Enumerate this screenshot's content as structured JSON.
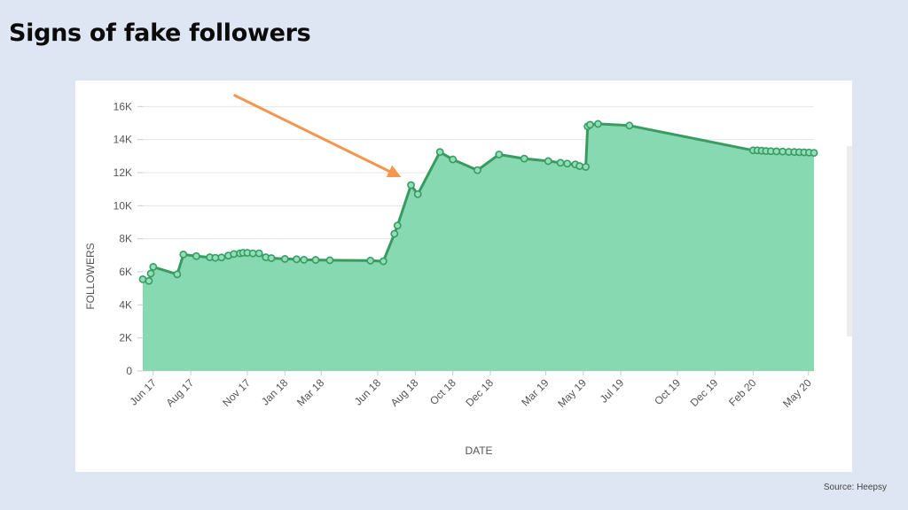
{
  "slide": {
    "title": "Signs of fake followers",
    "source": "Source: Heepsy"
  },
  "colors": {
    "background": "#dde6f2",
    "area_fill": "#86d9b1",
    "line": "#3a9a62",
    "arrow": "#f6964e"
  },
  "chart_data": {
    "type": "area",
    "title": "",
    "xlabel": "DATE",
    "ylabel": "FOLLOWERS",
    "ylim": [
      0,
      16500
    ],
    "yticks": [
      0,
      2000,
      4000,
      6000,
      8000,
      10000,
      12000,
      14000,
      16000
    ],
    "ytick_labels": [
      "0",
      "2K",
      "4K",
      "6K",
      "8K",
      "10K",
      "12K",
      "14K",
      "16K"
    ],
    "xlim": [
      "2017-05-15",
      "2020-05-10"
    ],
    "xticks": [
      "2017-06-01",
      "2017-08-01",
      "2017-11-01",
      "2018-01-01",
      "2018-03-01",
      "2018-06-01",
      "2018-08-01",
      "2018-10-01",
      "2018-12-01",
      "2019-03-01",
      "2019-05-01",
      "2019-07-01",
      "2019-10-01",
      "2019-12-01",
      "2020-02-01",
      "2020-05-01"
    ],
    "xtick_labels": [
      "Jun 17",
      "Aug 17",
      "Nov 17",
      "Jan 18",
      "Mar 18",
      "Jun 18",
      "Aug 18",
      "Oct 18",
      "Dec 18",
      "Mar 19",
      "May 19",
      "Jul 19",
      "Oct 19",
      "Dec 19",
      "Feb 20",
      "May 20"
    ],
    "grid": true,
    "annotations": [
      {
        "type": "arrow",
        "from": [
          "2017-10-10",
          16700
        ],
        "to": [
          "2018-07-05",
          11800
        ],
        "points_to": "sudden follower jump"
      }
    ],
    "series": [
      {
        "x": [
          "2017-05-15",
          "2017-05-25",
          "2017-05-28",
          "2017-06-01",
          "2017-07-10",
          "2017-07-20",
          "2017-08-10",
          "2017-09-01",
          "2017-09-10",
          "2017-09-20",
          "2017-10-01",
          "2017-10-10",
          "2017-10-20",
          "2017-10-25",
          "2017-11-01",
          "2017-11-10",
          "2017-11-20",
          "2017-12-01",
          "2017-12-10",
          "2018-01-01",
          "2018-01-20",
          "2018-02-01",
          "2018-02-20",
          "2018-03-15",
          "2018-05-20",
          "2018-06-10",
          "2018-06-28",
          "2018-07-03",
          "2018-07-25",
          "2018-08-05",
          "2018-09-10",
          "2018-10-01",
          "2018-11-10",
          "2018-12-15",
          "2019-01-25",
          "2019-03-05",
          "2019-03-25",
          "2019-04-05",
          "2019-04-18",
          "2019-04-25",
          "2019-05-05",
          "2019-05-08",
          "2019-05-12",
          "2019-05-25",
          "2019-07-15",
          "2020-02-01",
          "2020-02-08",
          "2020-02-15",
          "2020-02-22",
          "2020-03-01",
          "2020-03-10",
          "2020-03-20",
          "2020-03-30",
          "2020-04-08",
          "2020-04-16",
          "2020-04-24",
          "2020-05-02",
          "2020-05-10"
        ],
        "values": [
          5550,
          5450,
          5900,
          6300,
          5850,
          7050,
          6950,
          6880,
          6850,
          6870,
          6980,
          7080,
          7120,
          7150,
          7150,
          7120,
          7120,
          6880,
          6830,
          6780,
          6760,
          6730,
          6720,
          6700,
          6680,
          6640,
          8300,
          8800,
          11250,
          10700,
          13250,
          12800,
          12150,
          13100,
          12850,
          12700,
          12600,
          12550,
          12500,
          12400,
          12350,
          14800,
          14900,
          14950,
          14850,
          13350,
          13350,
          13330,
          13310,
          13300,
          13290,
          13280,
          13260,
          13250,
          13240,
          13230,
          13220,
          13200
        ]
      }
    ]
  }
}
